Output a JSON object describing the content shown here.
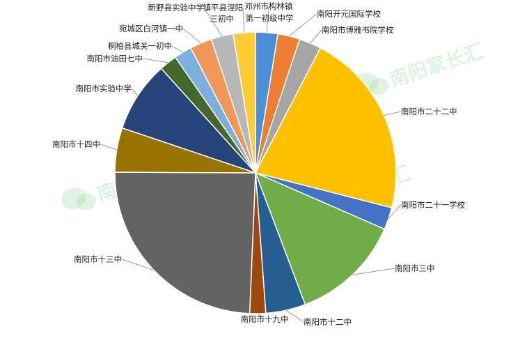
{
  "watermark": {
    "text": "南阳家长汇",
    "color": "#9ed9a6"
  },
  "chart_data": {
    "type": "pie",
    "title": "",
    "start_angle_deg": 0,
    "direction": "clockwise",
    "slices": [
      {
        "label": "邓州市构林镇第一初级中学",
        "value": 2.5,
        "color": "#4a90d9"
      },
      {
        "label": "南阳开元国际学校",
        "value": 2.5,
        "color": "#ed7d31"
      },
      {
        "label": "南阳市博雅书院学校",
        "value": 2.5,
        "color": "#a5a5a5"
      },
      {
        "label": "南阳市二十二中",
        "value": 21.0,
        "color": "#ffc000"
      },
      {
        "label": "南阳市二十一学校",
        "value": 2.5,
        "color": "#4472c4"
      },
      {
        "label": "南阳市三中",
        "value": 12.5,
        "color": "#70ad47"
      },
      {
        "label": "南阳市十二中",
        "value": 4.5,
        "color": "#255e91"
      },
      {
        "label": "南阳市十九中",
        "value": 1.8,
        "color": "#9e480e"
      },
      {
        "label": "南阳市十三中",
        "value": 24.0,
        "color": "#636363"
      },
      {
        "label": "南阳市十四中",
        "value": 5.0,
        "color": "#997300"
      },
      {
        "label": "南阳市实验中学",
        "value": 8.0,
        "color": "#264478"
      },
      {
        "label": "南阳市油田七中",
        "value": 2.0,
        "color": "#43682b"
      },
      {
        "label": "桐柏县城关一初中",
        "value": 2.0,
        "color": "#7cafdd"
      },
      {
        "label": "宛城区白河镇一中",
        "value": 2.5,
        "color": "#f1975a"
      },
      {
        "label": "新野县实验中学",
        "value": 2.5,
        "color": "#b7b7b7"
      },
      {
        "label": "镇平县涅阳三初中",
        "value": 2.5,
        "color": "#ffcd33"
      }
    ]
  }
}
